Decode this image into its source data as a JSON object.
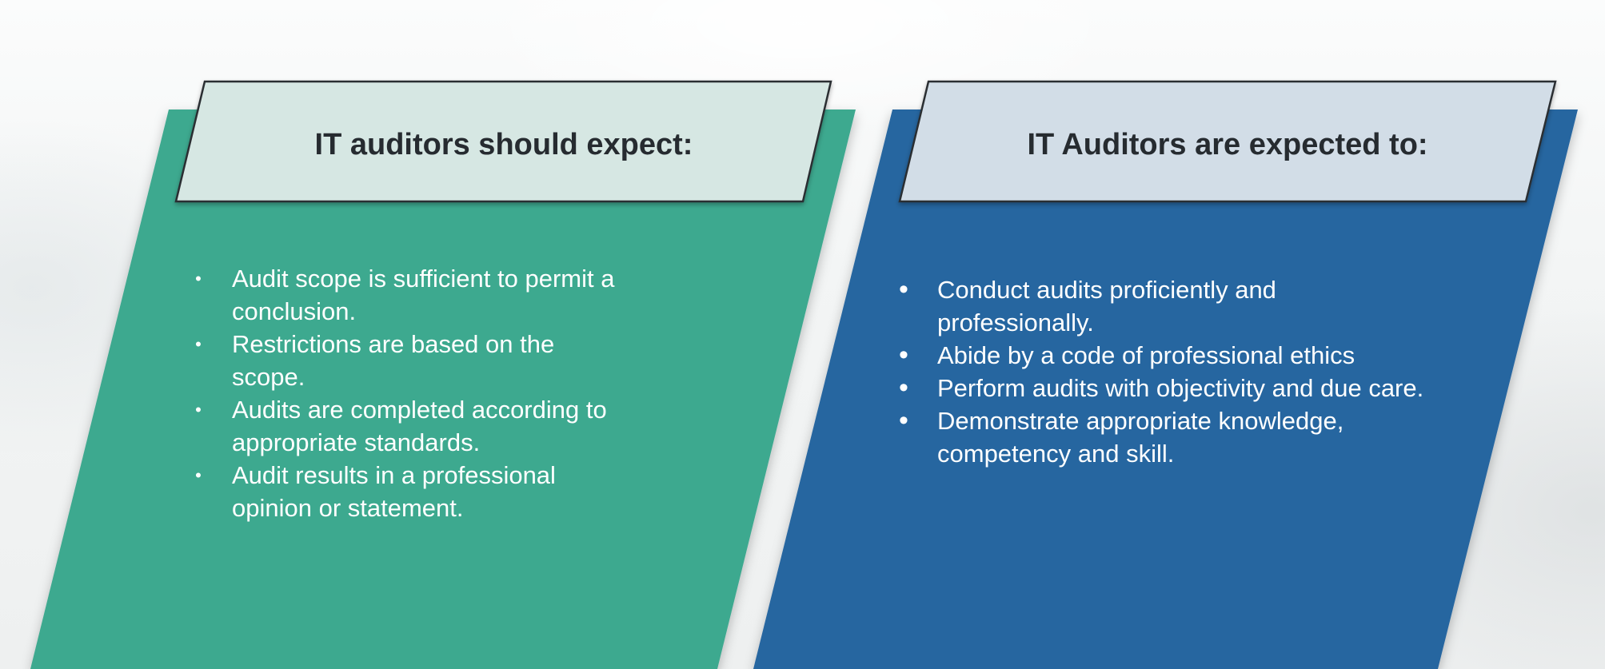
{
  "colors": {
    "left_panel": "#3ea98f",
    "right_panel": "#2866a0",
    "left_header": "#d6e7e3",
    "right_header": "#d2dde7",
    "header_text": "#262b30",
    "list_text": "#ffffff"
  },
  "left_panel": {
    "title": "IT auditors should expect:",
    "items": [
      {
        "bullet": "•",
        "text": "Audit scope is sufficient to permit a conclusion."
      },
      {
        "bullet": "•",
        "text": "Restrictions are based on the scope."
      },
      {
        "bullet": "•",
        "text": "Audits are completed according to appropriate standards."
      },
      {
        "bullet": "•",
        "text": "Audit results in a professional opinion or statement."
      }
    ]
  },
  "right_panel": {
    "title": "IT Auditors are expected to:",
    "items": [
      {
        "bullet": "•",
        "text": "Conduct audits proficiently and professionally."
      },
      {
        "bullet": "•",
        "text": "Abide by a code of professional ethics"
      },
      {
        "bullet": "•",
        "text": "Perform audits with objectivity and due care."
      },
      {
        "bullet": "•",
        "text": "Demonstrate appropriate knowledge, competency and skill."
      }
    ]
  }
}
